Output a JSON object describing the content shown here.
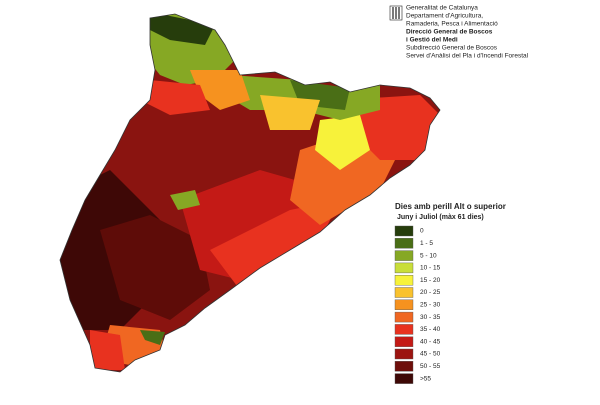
{
  "header": {
    "lines": [
      "Generalitat de Catalunya",
      "Departament d'Agricultura,",
      "Ramaderia, Pesca i Alimentació",
      "Direcció General de Boscos",
      "i Gestió del Medi",
      "Subdirecció General de Boscos",
      "Servei d'Anàlisi del Pla i d'Incendi Forestal"
    ]
  },
  "legend": {
    "title": "Dies amb perill Alt o superior",
    "subtitle": "Juny i Juliol (màx 61 dies)",
    "classes": [
      {
        "label": "0",
        "color": "#263d0c"
      },
      {
        "label": "1 - 5",
        "color": "#4a6e16"
      },
      {
        "label": "5 - 10",
        "color": "#86a824"
      },
      {
        "label": "10 - 15",
        "color": "#c9de3a"
      },
      {
        "label": "15 - 20",
        "color": "#f7f23a"
      },
      {
        "label": "20 - 25",
        "color": "#f9c22e"
      },
      {
        "label": "25 - 30",
        "color": "#f6921f"
      },
      {
        "label": "30 - 35",
        "color": "#f06722"
      },
      {
        "label": "35 - 40",
        "color": "#e8321f"
      },
      {
        "label": "40 - 45",
        "color": "#c41a16"
      },
      {
        "label": "45 - 50",
        "color": "#9c1410"
      },
      {
        "label": "50 - 55",
        "color": "#6e0e0a"
      },
      {
        "label": ">55",
        "color": "#3e0806"
      }
    ]
  }
}
